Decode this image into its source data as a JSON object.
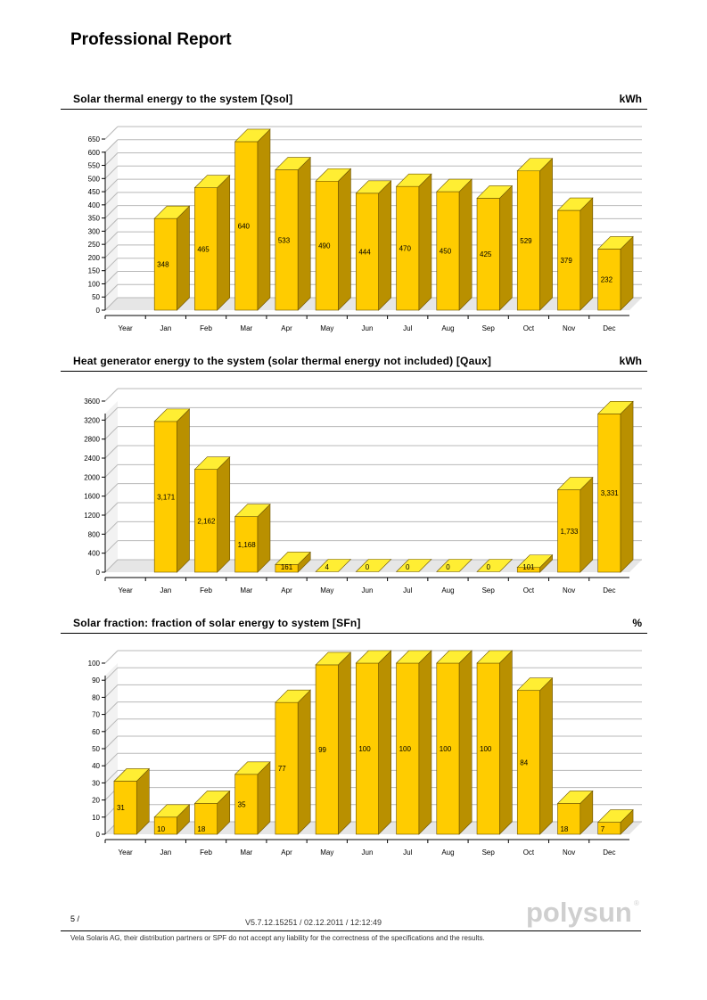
{
  "report": {
    "title": "Professional Report"
  },
  "charts": [
    {
      "title": "Solar thermal energy to the system [Qsol]",
      "unit": "kWh",
      "chart_data": {
        "type": "bar",
        "categories": [
          "Year",
          "Jan",
          "Feb",
          "Mar",
          "Apr",
          "May",
          "Jun",
          "Jul",
          "Aug",
          "Sep",
          "Oct",
          "Nov",
          "Dec"
        ],
        "values": [
          null,
          348,
          465,
          640,
          533,
          490,
          444,
          470,
          450,
          425,
          529,
          379,
          232
        ],
        "labels": [
          "",
          "348",
          "465",
          "640",
          "533",
          "490",
          "444",
          "470",
          "450",
          "425",
          "529",
          "379",
          "232"
        ],
        "ylim": [
          0,
          650
        ],
        "yticks": [
          0,
          50,
          100,
          150,
          200,
          250,
          300,
          350,
          400,
          450,
          500,
          550,
          600,
          650
        ],
        "grid": true
      }
    },
    {
      "title": "Heat generator energy to the system (solar thermal energy not included) [Qaux]",
      "unit": "kWh",
      "chart_data": {
        "type": "bar",
        "categories": [
          "Year",
          "Jan",
          "Feb",
          "Mar",
          "Apr",
          "May",
          "Jun",
          "Jul",
          "Aug",
          "Sep",
          "Oct",
          "Nov",
          "Dec"
        ],
        "values": [
          null,
          3171,
          2162,
          1168,
          161,
          4,
          0,
          0,
          0,
          0,
          101,
          1733,
          3331
        ],
        "labels": [
          "",
          "3,171",
          "2,162",
          "1,168",
          "161",
          "4",
          "0",
          "0",
          "0",
          "0",
          "101",
          "1,733",
          "3,331"
        ],
        "ylim": [
          0,
          3600
        ],
        "yticks": [
          0,
          400,
          800,
          1200,
          1600,
          2000,
          2400,
          2800,
          3200,
          3600
        ],
        "grid": true
      }
    },
    {
      "title": "Solar fraction: fraction of solar energy to system [SFn]",
      "unit": "%",
      "chart_data": {
        "type": "bar",
        "categories": [
          "Year",
          "Jan",
          "Feb",
          "Mar",
          "Apr",
          "May",
          "Jun",
          "Jul",
          "Aug",
          "Sep",
          "Oct",
          "Nov",
          "Dec"
        ],
        "values": [
          31,
          10,
          18,
          35,
          77,
          99,
          100,
          100,
          100,
          100,
          84,
          18,
          7
        ],
        "labels": [
          "31",
          "10",
          "18",
          "35",
          "77",
          "99",
          "100",
          "100",
          "100",
          "100",
          "84",
          "18",
          "7"
        ],
        "ylim": [
          0,
          100
        ],
        "yticks": [
          0,
          10,
          20,
          30,
          40,
          50,
          60,
          70,
          80,
          90,
          100
        ],
        "grid": true
      }
    }
  ],
  "footer": {
    "page": "5 /",
    "version": "V5.7.12.15251 / 02.12.2011 / 12:12:49",
    "disclaimer": "Vela Solaris AG, their distribution partners or SPF do not accept any liability for the correctness of the specifications and the results.",
    "logo_text": "polysun",
    "logo_mark": "®"
  },
  "colors": {
    "bar_front": "#ffcc00",
    "bar_top": "#ffee33",
    "bar_side": "#b99000",
    "grid": "#b8b8b8",
    "floor": "#e6e6e6"
  }
}
